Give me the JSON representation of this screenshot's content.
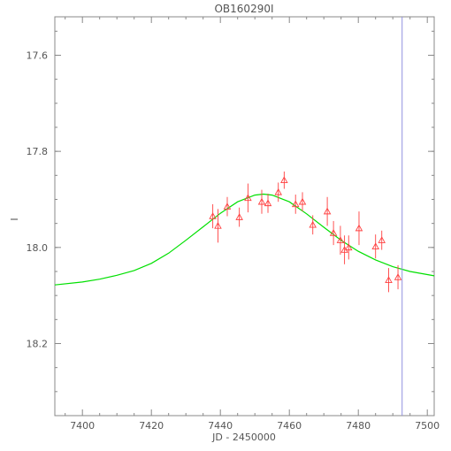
{
  "chart_data": {
    "type": "scatter",
    "title": "OB160290I",
    "xlabel": "JD - 2450000",
    "ylabel": "I",
    "xlim": [
      7392,
      7502
    ],
    "ylim": [
      18.35,
      17.52
    ],
    "y_inverted": true,
    "grid": false,
    "x_ticks": [
      7400,
      7420,
      7440,
      7460,
      7480,
      7500
    ],
    "y_ticks": [
      17.6,
      17.8,
      18.0,
      18.2
    ],
    "x_tick_labels": [
      "7400",
      "7420",
      "7440",
      "7460",
      "7480",
      "7500"
    ],
    "y_tick_labels": [
      "17.6",
      "17.8",
      "18.0",
      "18.2"
    ],
    "series": [
      {
        "kind": "points",
        "marker": "triangle",
        "color": "#ff4040",
        "points": [
          {
            "x": 7437.8,
            "y": 17.935,
            "err": 0.025
          },
          {
            "x": 7439.3,
            "y": 17.955,
            "err": 0.035
          },
          {
            "x": 7442.0,
            "y": 17.915,
            "err": 0.02
          },
          {
            "x": 7445.5,
            "y": 17.937,
            "err": 0.02
          },
          {
            "x": 7448.0,
            "y": 17.897,
            "err": 0.03
          },
          {
            "x": 7452.0,
            "y": 17.905,
            "err": 0.025
          },
          {
            "x": 7453.8,
            "y": 17.908,
            "err": 0.02
          },
          {
            "x": 7456.8,
            "y": 17.885,
            "err": 0.02
          },
          {
            "x": 7458.5,
            "y": 17.86,
            "err": 0.018
          },
          {
            "x": 7461.8,
            "y": 17.91,
            "err": 0.02
          },
          {
            "x": 7463.8,
            "y": 17.905,
            "err": 0.02
          },
          {
            "x": 7466.8,
            "y": 17.953,
            "err": 0.02
          },
          {
            "x": 7471.0,
            "y": 17.925,
            "err": 0.03
          },
          {
            "x": 7472.8,
            "y": 17.97,
            "err": 0.025
          },
          {
            "x": 7474.8,
            "y": 17.985,
            "err": 0.03
          },
          {
            "x": 7476.0,
            "y": 18.005,
            "err": 0.03
          },
          {
            "x": 7477.2,
            "y": 18.0,
            "err": 0.025
          },
          {
            "x": 7480.2,
            "y": 17.96,
            "err": 0.035
          },
          {
            "x": 7485.0,
            "y": 17.998,
            "err": 0.025
          },
          {
            "x": 7486.8,
            "y": 17.985,
            "err": 0.02
          },
          {
            "x": 7488.8,
            "y": 18.068,
            "err": 0.025
          },
          {
            "x": 7491.5,
            "y": 18.062,
            "err": 0.025
          }
        ]
      },
      {
        "kind": "model-curve",
        "color": "#00e000",
        "x": [
          7392,
          7400,
          7405,
          7410,
          7415,
          7420,
          7425,
          7430,
          7435,
          7440,
          7445,
          7450,
          7452.5,
          7455,
          7460,
          7465,
          7470,
          7475,
          7480,
          7485,
          7490,
          7495,
          7502
        ],
        "y": [
          18.078,
          18.072,
          18.066,
          18.058,
          18.048,
          18.033,
          18.012,
          17.985,
          17.957,
          17.929,
          17.905,
          17.891,
          17.889,
          17.891,
          17.905,
          17.93,
          17.958,
          17.985,
          18.008,
          18.026,
          18.04,
          18.05,
          18.059
        ]
      }
    ],
    "annotations": [
      {
        "type": "vertical-line",
        "x": 7492.7,
        "color": "#9090e0"
      }
    ]
  }
}
